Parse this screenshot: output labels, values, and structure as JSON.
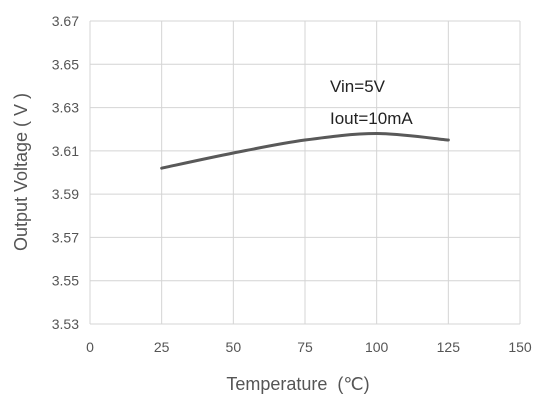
{
  "chart_data": {
    "type": "line",
    "title": "",
    "xlabel": "Temperature  (℃)",
    "ylabel": "Output Voltage ( V )",
    "xlim": [
      0,
      150
    ],
    "ylim": [
      3.53,
      3.67
    ],
    "x_ticks": [
      "0",
      "25",
      "50",
      "75",
      "100",
      "125",
      "150"
    ],
    "y_ticks": [
      "3.53",
      "3.55",
      "3.57",
      "3.59",
      "3.61",
      "3.63",
      "3.65",
      "3.67"
    ],
    "grid": true,
    "annotations": [
      "Vin=5V",
      "Iout=10mA"
    ],
    "series": [
      {
        "color": "#595959",
        "x": [
          25,
          50,
          75,
          100,
          125
        ],
        "y": [
          3.602,
          3.609,
          3.615,
          3.618,
          3.615
        ]
      }
    ]
  }
}
